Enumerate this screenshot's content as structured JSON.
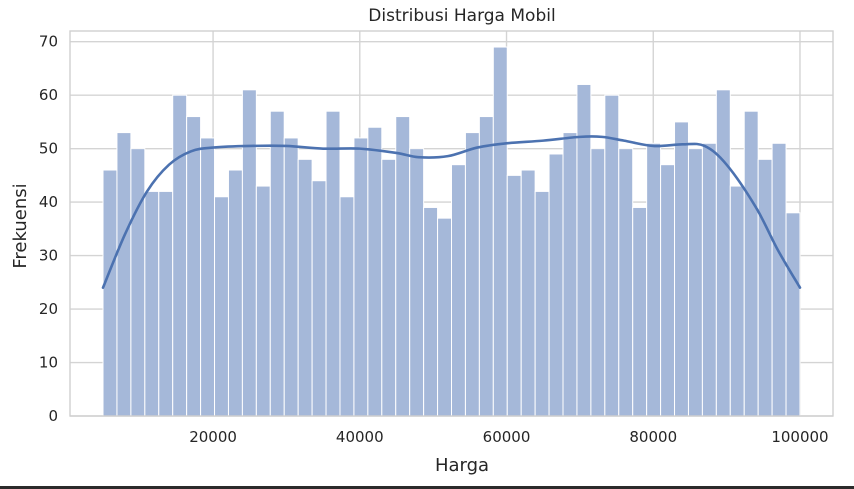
{
  "chart_data": {
    "type": "bar",
    "subtype": "histogram",
    "title": "Distribusi Harga Mobil",
    "xlabel": "Harga",
    "ylabel": "Frekuensi",
    "xlim": [
      500,
      104500
    ],
    "ylim": [
      0,
      72
    ],
    "x_ticks": [
      20000,
      40000,
      60000,
      80000,
      100000
    ],
    "y_ticks": [
      0,
      10,
      20,
      30,
      40,
      50,
      60,
      70
    ],
    "grid": true,
    "bin_start": 5000,
    "bin_end": 100000,
    "values": [
      46,
      53,
      50,
      42,
      42,
      60,
      56,
      52,
      41,
      46,
      61,
      43,
      57,
      52,
      48,
      44,
      57,
      41,
      52,
      54,
      48,
      56,
      50,
      39,
      37,
      47,
      53,
      56,
      69,
      45,
      46,
      42,
      49,
      53,
      62,
      50,
      60,
      50,
      39,
      51,
      47,
      55,
      50,
      51,
      61,
      43,
      57,
      48,
      51,
      38
    ],
    "kde": {
      "x": [
        5000,
        8000,
        11000,
        14000,
        17000,
        20000,
        25000,
        30000,
        35000,
        40000,
        45000,
        48000,
        52000,
        56000,
        60000,
        65000,
        70000,
        73000,
        76000,
        80000,
        84000,
        87000,
        90000,
        94000,
        97000,
        100000
      ],
      "y": [
        24,
        34,
        42,
        47,
        49.5,
        50.2,
        50.5,
        50.5,
        50,
        50,
        49.2,
        48.4,
        48.6,
        50.2,
        51,
        51.5,
        52.2,
        52.2,
        51.5,
        50.5,
        50.8,
        50.5,
        47,
        39,
        31,
        24
      ]
    },
    "colors": {
      "bar": "#a5b8d9",
      "line": "#4c72b0"
    }
  }
}
